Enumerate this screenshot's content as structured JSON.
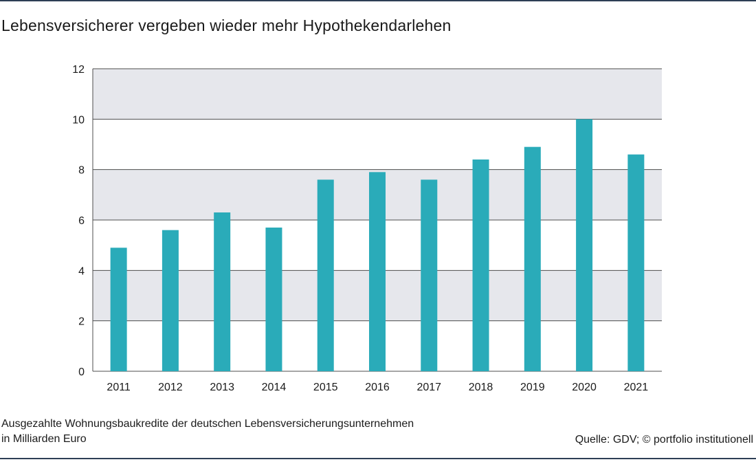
{
  "header": {
    "title": "Lebensversicherer vergeben wieder mehr Hypothekendarlehen"
  },
  "footer": {
    "caption_line1": "Ausgezahlte Wohnungsbaukredite der deutschen Lebensversicherungsunternehmen",
    "caption_line2": "in Milliarden Euro",
    "source": "Quelle: GDV; © portfolio institutionell"
  },
  "colors": {
    "bar": "#2aabb9",
    "band": "#e6e7ec",
    "gridline": "#4d4d4d",
    "rule": "#2d3e55"
  },
  "chart_data": {
    "type": "bar",
    "title": "Lebensversicherer vergeben wieder mehr Hypothekendarlehen",
    "xlabel": "",
    "ylabel": "",
    "categories": [
      "2011",
      "2012",
      "2013",
      "2014",
      "2015",
      "2016",
      "2017",
      "2018",
      "2019",
      "2020",
      "2021"
    ],
    "values": [
      4.9,
      5.6,
      6.3,
      5.7,
      7.6,
      7.9,
      7.6,
      8.4,
      8.9,
      10.0,
      8.6
    ],
    "ylim": [
      0,
      12
    ],
    "yticks": [
      "0",
      "2",
      "4",
      "6",
      "8",
      "10",
      "12"
    ],
    "grid": true,
    "legend": "none",
    "alternating_bands": true
  }
}
